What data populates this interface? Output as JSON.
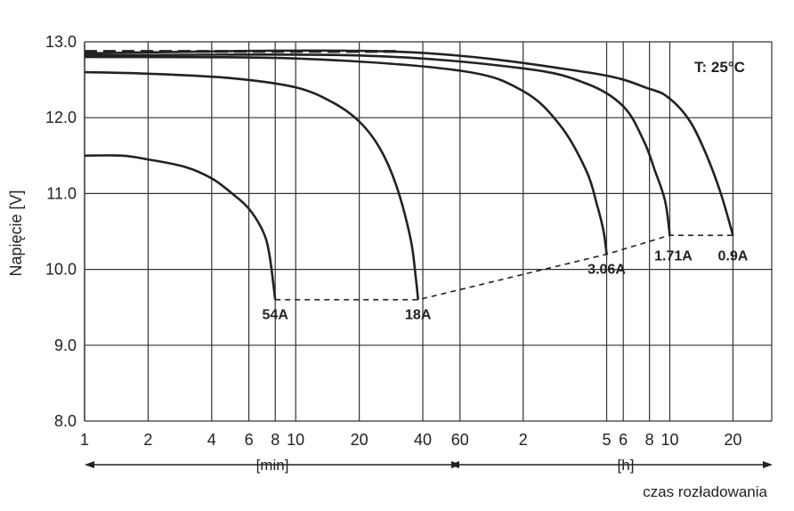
{
  "chart_data": {
    "type": "line",
    "title": "",
    "ylabel": "Napięcie [V]",
    "xlabel": "czas rozładowania",
    "ylim": [
      8.0,
      13.0
    ],
    "y_ticks": [
      "8.0",
      "9.0",
      "10.0",
      "11.0",
      "12.0",
      "13.0"
    ],
    "x_scale": "log",
    "x_ticks_min": [
      "1",
      "2",
      "4",
      "6",
      "8",
      "10",
      "20",
      "40",
      "60"
    ],
    "x_ticks_h": [
      "2",
      "5",
      "6",
      "8",
      "10",
      "20"
    ],
    "x_unit_min": "[min]",
    "x_unit_h": "[h]",
    "temperature": "T: 25°C",
    "grid": true,
    "series": [
      {
        "name": "54A",
        "x_min": [
          1,
          1.5,
          2,
          3,
          4,
          5,
          6,
          7,
          7.5,
          8
        ],
        "y": [
          11.5,
          11.5,
          11.45,
          11.35,
          11.2,
          11.0,
          10.8,
          10.5,
          10.2,
          9.6
        ]
      },
      {
        "name": "18A",
        "x_min": [
          1,
          2,
          5,
          10,
          15,
          20,
          25,
          30,
          35,
          37,
          38
        ],
        "y": [
          12.6,
          12.58,
          12.52,
          12.4,
          12.2,
          11.95,
          11.6,
          11.1,
          10.4,
          9.9,
          9.6
        ]
      },
      {
        "name": "3.06A",
        "x_min": [
          1,
          10,
          60,
          120,
          180,
          240,
          270,
          290,
          300
        ],
        "y": [
          12.8,
          12.78,
          12.62,
          12.35,
          11.9,
          11.3,
          10.85,
          10.5,
          10.2
        ]
      },
      {
        "name": "1.71A",
        "x_min": [
          1,
          20,
          120,
          240,
          360,
          450,
          510,
          570,
          600
        ],
        "y": [
          12.82,
          12.82,
          12.65,
          12.45,
          12.15,
          11.7,
          11.3,
          10.9,
          10.45
        ]
      },
      {
        "name": "0.9A",
        "x_min": [
          1,
          30,
          240,
          480,
          600,
          750,
          900,
          1050,
          1200
        ],
        "y": [
          12.85,
          12.87,
          12.6,
          12.38,
          12.25,
          11.95,
          11.5,
          11.0,
          10.45
        ]
      }
    ],
    "cutoff_line": {
      "x_min": [
        8,
        38,
        300,
        600,
        1200
      ],
      "y": [
        9.6,
        9.6,
        10.2,
        10.45,
        10.45
      ]
    },
    "float_line": {
      "x_min": [
        1,
        30
      ],
      "y": [
        12.85,
        12.85
      ]
    }
  }
}
